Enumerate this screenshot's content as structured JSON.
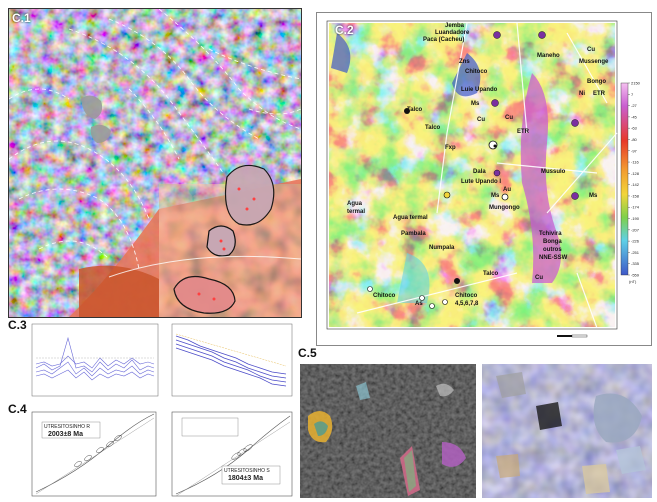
{
  "panels": {
    "c1": {
      "label": "C.1"
    },
    "c2": {
      "label": "C.2"
    },
    "c3": {
      "label": "C.3"
    },
    "c4": {
      "label": "C.4"
    },
    "c5": {
      "label": "C.5"
    }
  },
  "c2_map": {
    "place_labels": [
      "Jemba",
      "Luandadore",
      "Paca (Cacheu)",
      "Zns",
      "Chitoco",
      "Maneho",
      "Cu",
      "Mussenge",
      "Bongo",
      "Ni",
      "ETR",
      "Luie Upando",
      "Ms",
      "Cu",
      "Talco",
      "Talco",
      "Fxp",
      "Cu",
      "ETR",
      "Dala",
      "Lute Upando I",
      "Mussulo",
      "Ms",
      "Au",
      "Mungongo",
      "Ms",
      "Agua",
      "termal",
      "Agua termal",
      "Pambala",
      "Numpala",
      "Tchivira",
      "Bonga",
      "outros",
      "NNE-SSW",
      "Talco",
      "Cu",
      "Chitoco",
      "As",
      "Chitoco",
      "4,5,6,7,8"
    ],
    "legend_values": [
      "2150",
      "7",
      "-27",
      "-45",
      "-63",
      "-80",
      "-97",
      "-116",
      "-128",
      "-142",
      "-158",
      "-174",
      "-190",
      "-207",
      "-226",
      "-251",
      "-335",
      "-559"
    ],
    "legend_unit": "(nT)"
  },
  "c4_charts": [
    {
      "annotation_title": "UTRESITOSINHO R",
      "age": "2003±8 Ma"
    },
    {
      "annotation_title": "UTRESITOSINHO S",
      "age": "1804±3 Ma"
    }
  ],
  "colors": {
    "map_red": "#e8382a",
    "map_magenta": "#c95fd0",
    "map_cyan": "#5fd0e6",
    "map_yellow": "#f2d53a",
    "map_blue": "#3f58c8"
  }
}
